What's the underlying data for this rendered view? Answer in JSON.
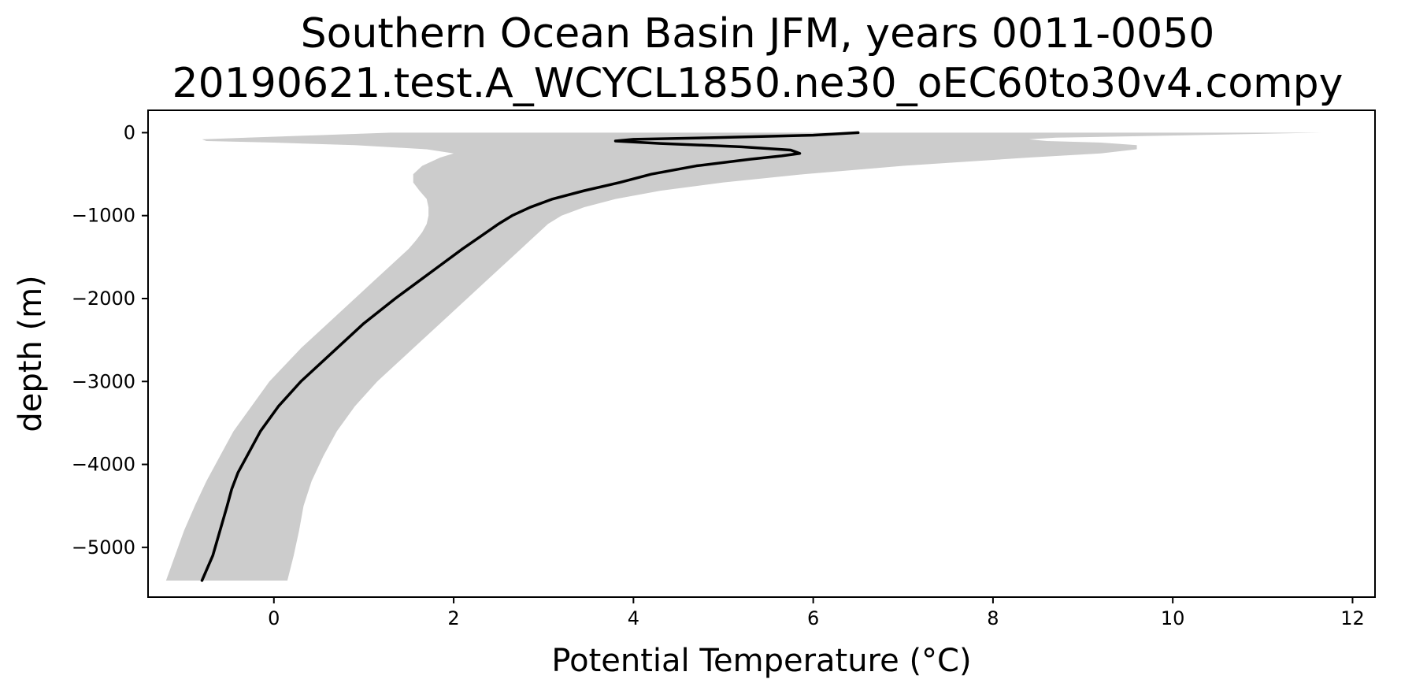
{
  "chart_data": {
    "type": "line",
    "title_line1": "Southern Ocean Basin JFM, years 0011-0050",
    "title_line2": "20190621.test.A_WCYCL1850.ne30_oEC60to30v4.compy",
    "xlabel": "Potential Temperature (°C)",
    "ylabel": "depth (m)",
    "xlim": [
      -1.4,
      12.25
    ],
    "ylim": [
      -5600,
      270
    ],
    "xticks": [
      0,
      2,
      4,
      6,
      8,
      10,
      12
    ],
    "xtick_labels": [
      "0",
      "2",
      "4",
      "6",
      "8",
      "10",
      "12"
    ],
    "yticks": [
      0,
      -1000,
      -2000,
      -3000,
      -4000,
      -5000
    ],
    "ytick_labels": [
      "0",
      "−1000",
      "−2000",
      "−3000",
      "−4000",
      "−5000"
    ],
    "grid": false,
    "legend": "none",
    "colors": {
      "mean_line": "#000000",
      "spread_band": "#cccccc"
    },
    "series": [
      {
        "kind": "line",
        "depth": [
          0,
          -30,
          -60,
          -80,
          -100,
          -130,
          -170,
          -210,
          -250,
          -280,
          -320,
          -400,
          -500,
          -600,
          -700,
          -800,
          -900,
          -1000,
          -1100,
          -1250,
          -1400,
          -1600,
          -1800,
          -2000,
          -2300,
          -2600,
          -3000,
          -3300,
          -3600,
          -3900,
          -4100,
          -4300,
          -4500,
          -4800,
          -5100,
          -5400
        ],
        "temperature": [
          6.5,
          6.0,
          4.9,
          4.0,
          3.8,
          4.3,
          5.2,
          5.75,
          5.85,
          5.65,
          5.3,
          4.7,
          4.2,
          3.85,
          3.45,
          3.1,
          2.85,
          2.65,
          2.5,
          2.3,
          2.1,
          1.85,
          1.6,
          1.35,
          1.0,
          0.7,
          0.3,
          0.05,
          -0.15,
          -0.3,
          -0.4,
          -0.47,
          -0.52,
          -0.6,
          -0.68,
          -0.8
        ]
      },
      {
        "kind": "band",
        "depth": [
          0,
          -30,
          -60,
          -80,
          -100,
          -120,
          -150,
          -200,
          -250,
          -300,
          -400,
          -500,
          -600,
          -700,
          -800,
          -900,
          -1000,
          -1100,
          -1200,
          -1300,
          -1400,
          -1500,
          -1600,
          -1800,
          -2000,
          -2300,
          -2600,
          -3000,
          -3300,
          -3600,
          -3900,
          -4200,
          -4500,
          -4800,
          -5100,
          -5400
        ],
        "lower": [
          1.3,
          0.5,
          -0.3,
          -0.8,
          -0.75,
          0.0,
          0.9,
          1.7,
          2.0,
          1.85,
          1.65,
          1.55,
          1.55,
          1.62,
          1.7,
          1.72,
          1.72,
          1.7,
          1.65,
          1.58,
          1.5,
          1.4,
          1.3,
          1.1,
          0.9,
          0.6,
          0.3,
          -0.05,
          -0.25,
          -0.45,
          -0.6,
          -0.75,
          -0.88,
          -1.0,
          -1.1,
          -1.2
        ],
        "upper": [
          11.65,
          10.2,
          8.7,
          8.4,
          8.6,
          9.2,
          9.6,
          9.6,
          9.2,
          8.4,
          7.0,
          5.9,
          5.0,
          4.3,
          3.8,
          3.45,
          3.2,
          3.05,
          2.95,
          2.85,
          2.75,
          2.65,
          2.55,
          2.35,
          2.15,
          1.85,
          1.55,
          1.15,
          0.9,
          0.7,
          0.55,
          0.42,
          0.33,
          0.28,
          0.22,
          0.15
        ]
      }
    ]
  }
}
